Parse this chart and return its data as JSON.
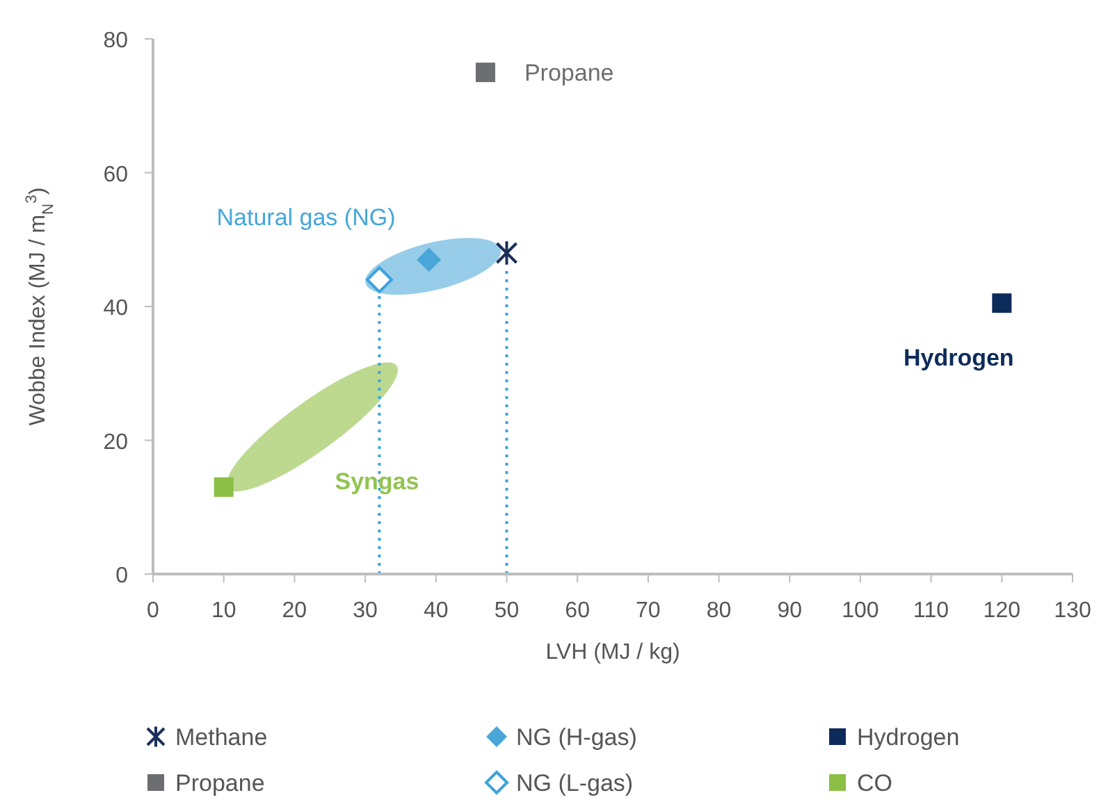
{
  "chart_data": {
    "type": "scatter",
    "xlabel": "LVH (MJ / kg)",
    "ylabel": "Wobbe Index (MJ / m$_{N}$$^{3}$)",
    "xlim": [
      0,
      130
    ],
    "xticks": [
      0,
      10,
      20,
      30,
      40,
      50,
      60,
      70,
      80,
      90,
      100,
      110,
      120,
      130
    ],
    "ylim": [
      0,
      80
    ],
    "yticks": [
      0,
      20,
      40,
      60,
      80
    ],
    "grid": false,
    "legend": "bottom",
    "series": [
      {
        "name": "Methane",
        "color": "#1b2f5a",
        "marker": "cross",
        "x": [
          50
        ],
        "values": [
          48
        ]
      },
      {
        "name": "NG (H-gas)",
        "color": "#4aa6d8",
        "marker": "diamond",
        "x": [
          39
        ],
        "values": [
          47
        ]
      },
      {
        "name": "Hydrogen",
        "color": "#0d2b5a",
        "marker": "square",
        "x": [
          120
        ],
        "values": [
          40.5
        ]
      },
      {
        "name": "Propane",
        "color": "#6d6e71",
        "marker": "square",
        "x": [
          47
        ],
        "values": [
          75
        ]
      },
      {
        "name": "NG (L-gas)",
        "color": "#3ba3dc",
        "marker": "diamond",
        "x": [
          32
        ],
        "values": [
          44
        ]
      },
      {
        "name": "CO",
        "color": "#8cbf45",
        "marker": "square",
        "x": [
          10
        ],
        "values": [
          13
        ]
      }
    ],
    "ref_lines": [
      {
        "axis": "x",
        "value": 32,
        "color": "#3ba3dc",
        "line_style": "dotted"
      },
      {
        "axis": "x",
        "value": 50,
        "color": "#3ba3dc",
        "line_style": "dotted"
      }
    ],
    "annotations": [
      {
        "text": "Propane",
        "x": 47,
        "y": 75
      },
      "Natural gas (NG)",
      {
        "text": "Hydrogen",
        "x": 120,
        "y": 40.5
      },
      "Syngas"
    ]
  }
}
